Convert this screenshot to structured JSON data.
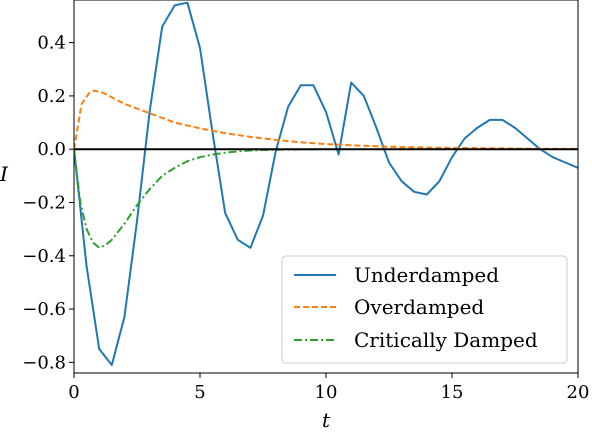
{
  "chart_data": {
    "type": "line",
    "xlabel": "t",
    "ylabel": "I",
    "xlim": [
      0,
      20
    ],
    "ylim": [
      -0.84,
      0.56
    ],
    "grid": false,
    "legend_position": "lower-right",
    "x_ticks": [
      0,
      5,
      10,
      15,
      20
    ],
    "y_ticks": [
      -0.8,
      -0.6,
      -0.4,
      -0.2,
      0.0,
      0.2,
      0.4
    ],
    "x_tick_labels": [
      "0",
      "5",
      "10",
      "15",
      "20"
    ],
    "y_tick_labels": [
      "−0.8",
      "−0.6",
      "−0.4",
      "−0.2",
      "0.0",
      "0.2",
      "0.4"
    ],
    "reference_line": {
      "y": 0,
      "color": "#000000"
    },
    "series": [
      {
        "name": "Underdamped",
        "color": "#1f77b4",
        "dash": "solid",
        "x": [
          0,
          0.5,
          1,
          1.5,
          2,
          2.5,
          3,
          3.5,
          4,
          4.5,
          5,
          5.5,
          6,
          6.5,
          7,
          7.5,
          8,
          8.5,
          9,
          9.5,
          10,
          10.5,
          11,
          11.5,
          12,
          12.5,
          13,
          13.5,
          14,
          14.5,
          15,
          15.5,
          16,
          16.5,
          17,
          17.5,
          18,
          18.5,
          19,
          19.5,
          20
        ],
        "y": [
          0,
          -0.44,
          -0.75,
          -0.81,
          -0.63,
          -0.27,
          0.14,
          0.46,
          0.54,
          0.55,
          0.38,
          0.06,
          -0.24,
          -0.34,
          -0.37,
          -0.25,
          -0.01,
          0.16,
          0.24,
          0.24,
          0.14,
          -0.02,
          0.25,
          0.2,
          0.08,
          -0.05,
          -0.12,
          -0.16,
          -0.17,
          -0.12,
          -0.03,
          0.04,
          0.08,
          0.11,
          0.11,
          0.08,
          0.04,
          0.0,
          -0.03,
          -0.05,
          -0.07
        ]
      },
      {
        "name": "Overdamped",
        "color": "#ff7f0e",
        "dash": "dashed",
        "x": [
          0,
          0.3,
          0.6,
          0.8,
          1.2,
          1.6,
          2,
          3,
          4,
          5,
          6,
          7,
          8,
          9,
          10,
          11,
          12,
          13,
          14,
          15,
          16,
          17,
          18,
          19,
          20
        ],
        "y": [
          0,
          0.17,
          0.21,
          0.22,
          0.21,
          0.19,
          0.17,
          0.135,
          0.1,
          0.078,
          0.06,
          0.046,
          0.035,
          0.026,
          0.019,
          0.015,
          0.011,
          0.008,
          0.006,
          0.005,
          0.004,
          0.003,
          0.002,
          0.001,
          0.001
        ]
      },
      {
        "name": "Critically Damped",
        "color": "#2ca02c",
        "dash": "dashdot",
        "x": [
          0,
          0.25,
          0.5,
          0.75,
          1,
          1.25,
          1.5,
          2,
          2.5,
          3,
          3.5,
          4,
          4.5,
          5,
          5.5,
          6,
          6.5,
          7,
          7.5,
          8,
          9,
          10
        ],
        "y": [
          0,
          -0.2,
          -0.3,
          -0.35,
          -0.37,
          -0.36,
          -0.34,
          -0.28,
          -0.21,
          -0.15,
          -0.1,
          -0.07,
          -0.045,
          -0.03,
          -0.02,
          -0.013,
          -0.008,
          -0.005,
          -0.003,
          -0.002,
          -0.001,
          0
        ]
      }
    ]
  }
}
